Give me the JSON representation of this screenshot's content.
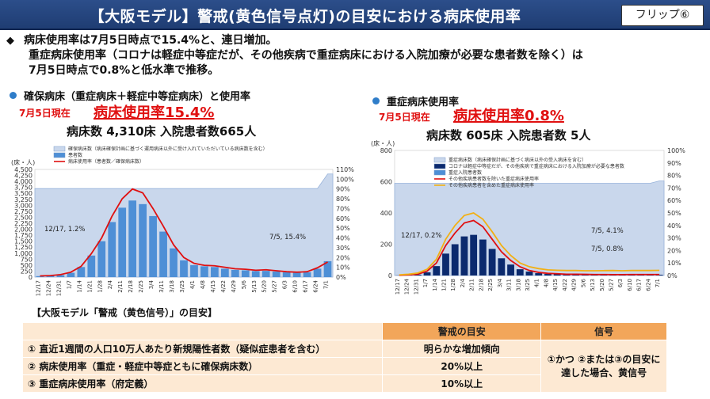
{
  "header": {
    "title": "【大阪モデル】警戒(黄色信号点灯)の目安における病床使用率",
    "flip": "フリップ⑥"
  },
  "summary": {
    "bullet": "◆",
    "line1": "病床使用率は7月5日時点で15.4%と、連日増加。",
    "line2": "重症病床使用率（コロナは軽症中等症だが、その他疾病で重症病床における入院加療が必要な患者数を除く）は",
    "line3": "7月5日時点で0.8%と低水準で推移。"
  },
  "left": {
    "section_title": "確保病床（重症病床＋軽症中等症病床）と使用率",
    "asof": "7月5日現在",
    "rate": "病床使用率15.4%",
    "beds": "病床数 4,310床 入院患者数665人"
  },
  "right": {
    "section_title": "重症病床使用率",
    "asof": "7月5日現在",
    "rate": "病床使用率0.8%",
    "beds": "病床数 605床 入院患者数 5人"
  },
  "colors": {
    "header": "#1f3d73",
    "accent_red": "#e01010",
    "bar_light": "#c9d7ec",
    "bar_dark": "#0b2a6e",
    "bar_mid": "#4e8fd6",
    "line_orange": "#f2b014",
    "table_head": "#f2a65a",
    "table_cell": "#fde9d3"
  },
  "criteria": {
    "title": "【大阪モデル「警戒（黄色信号）」の目安】",
    "col_criterion": "警戒の目安",
    "col_signal": "信号",
    "rows": [
      {
        "label": "① 直近1週間の人口10万人あたり新規陽性者数（疑似症患者を含む）",
        "value": "明らかな増加傾向"
      },
      {
        "label": "② 病床使用率（重症・軽症中等症ともに確保病床数）",
        "value": "20%以上"
      },
      {
        "label": "③ 重症病床使用率（府定義）",
        "value": "10%以上"
      }
    ],
    "signal_line1": "①かつ ②または③の目安に",
    "signal_line2": "達した場合、黄信号"
  },
  "chart_data": [
    {
      "type": "bar",
      "unit_label": "(床・人)",
      "legend": [
        "確保病床数（病床確保計画に基づく運用病床以外に受け入れていただいている病床数を含む）",
        "患者数",
        "病床使用率（患者数／確保病床数）"
      ],
      "x_tick_labels": [
        "12/17",
        "12/24",
        "12/31",
        "1/7",
        "1/14",
        "1/21",
        "1/28",
        "2/4",
        "2/11",
        "2/18",
        "2/25",
        "3/4",
        "3/11",
        "3/18",
        "3/25",
        "4/1",
        "4/8",
        "4/15",
        "4/22",
        "4/29",
        "5/6",
        "5/13",
        "5/20",
        "5/27",
        "6/3",
        "6/10",
        "6/17",
        "6/24",
        "7/1"
      ],
      "y_ticks": [
        "0",
        "250",
        "500",
        "750",
        "1,000",
        "1,250",
        "1,500",
        "1,750",
        "2,000",
        "2,250",
        "2,500",
        "2,750",
        "3,000",
        "3,250",
        "3,500",
        "3,750",
        "4,000",
        "4,250",
        "4,500"
      ],
      "y2_ticks": [
        "0%",
        "10%",
        "20%",
        "30%",
        "40%",
        "50%",
        "60%",
        "70%",
        "80%",
        "90%",
        "100%",
        "110%"
      ],
      "ylim": [
        0,
        4500
      ],
      "y2lim": [
        0,
        110
      ],
      "series": [
        {
          "name": "確保病床数",
          "values": [
            3700,
            3700,
            3700,
            3700,
            3700,
            3700,
            3700,
            3700,
            3700,
            3700,
            3700,
            3700,
            3700,
            3700,
            3700,
            3700,
            3700,
            3700,
            3700,
            3700,
            3700,
            3700,
            3700,
            3700,
            3700,
            3700,
            3700,
            3700,
            4310
          ]
        },
        {
          "name": "患者数",
          "values": [
            40,
            50,
            80,
            180,
            420,
            900,
            1500,
            2300,
            2900,
            3200,
            3050,
            2550,
            1900,
            1200,
            700,
            500,
            450,
            420,
            350,
            300,
            280,
            250,
            260,
            230,
            200,
            180,
            200,
            350,
            665
          ]
        },
        {
          "name": "病床使用率（患者数／確保病床数）",
          "values": [
            1.2,
            1.5,
            2.5,
            5,
            11,
            24,
            40,
            62,
            80,
            90,
            86,
            70,
            52,
            33,
            20,
            14,
            12,
            11.5,
            10,
            8.5,
            8,
            7,
            7.5,
            6.5,
            5.5,
            5,
            5.5,
            9.5,
            15.4
          ]
        }
      ],
      "annotations": [
        "12/17, 1.2%",
        "7/5, 15.4%"
      ]
    },
    {
      "type": "bar",
      "unit_label": "(床・人)",
      "legend": [
        "重症病床数（病床確保計画に基づく病床以外の受入病床を含む）",
        "コロナは軽症中等症だが、その他疾病で重症病床における入院加療が必要な患者数",
        "重症入院患者数",
        "その他疾病患者数を除いた重症病床使用率",
        "その他疾病患者を含めた重症病床使用率"
      ],
      "x_tick_labels": [
        "12/17",
        "12/24",
        "12/31",
        "1/7",
        "1/14",
        "1/21",
        "1/28",
        "2/4",
        "2/11",
        "2/18",
        "2/25",
        "3/4",
        "3/11",
        "3/18",
        "3/25",
        "4/1",
        "4/8",
        "4/15",
        "4/22",
        "4/29",
        "5/6",
        "5/13",
        "5/20",
        "5/27",
        "6/3",
        "6/10",
        "6/17",
        "6/24",
        "7/1"
      ],
      "y_ticks": [
        "0",
        "200",
        "400",
        "600",
        "800"
      ],
      "y2_ticks": [
        "0%",
        "10%",
        "20%",
        "30%",
        "40%",
        "50%",
        "60%",
        "70%",
        "80%",
        "90%",
        "100%"
      ],
      "ylim": [
        0,
        800
      ],
      "y2lim": [
        0,
        100
      ],
      "series": [
        {
          "name": "重症病床数",
          "values": [
            590,
            590,
            590,
            590,
            590,
            590,
            590,
            590,
            590,
            590,
            590,
            590,
            590,
            590,
            590,
            590,
            590,
            590,
            590,
            590,
            590,
            590,
            590,
            590,
            590,
            590,
            590,
            590,
            605
          ]
        },
        {
          "name": "重症入院患者数",
          "values": [
            1,
            2,
            5,
            20,
            60,
            140,
            200,
            250,
            260,
            230,
            170,
            110,
            70,
            40,
            25,
            15,
            10,
            8,
            6,
            6,
            5,
            4,
            4,
            4,
            4,
            5,
            5,
            5,
            5
          ]
        },
        {
          "name": "その他疾病患者数を除いた重症病床使用率",
          "values": [
            0.2,
            0.5,
            1,
            3.5,
            10,
            24,
            34,
            42,
            44,
            39,
            29,
            19,
            12,
            7,
            4,
            2.5,
            1.7,
            1.4,
            1,
            1,
            0.9,
            0.8,
            0.8,
            0.7,
            0.7,
            0.8,
            0.8,
            0.8,
            0.8
          ]
        },
        {
          "name": "その他疾病患者を含めた重症病床使用率",
          "values": [
            0.5,
            1,
            2,
            5,
            13,
            29,
            40,
            48,
            50,
            45,
            35,
            24,
            16,
            10,
            7,
            5.5,
            4.5,
            4.2,
            4,
            4,
            3.8,
            3.8,
            3.9,
            4,
            3.8,
            4,
            4,
            4,
            4.1
          ]
        }
      ],
      "annotations": [
        "12/17, 0.2%",
        "7/5, 4.1%",
        "7/5, 0.8%"
      ]
    }
  ]
}
